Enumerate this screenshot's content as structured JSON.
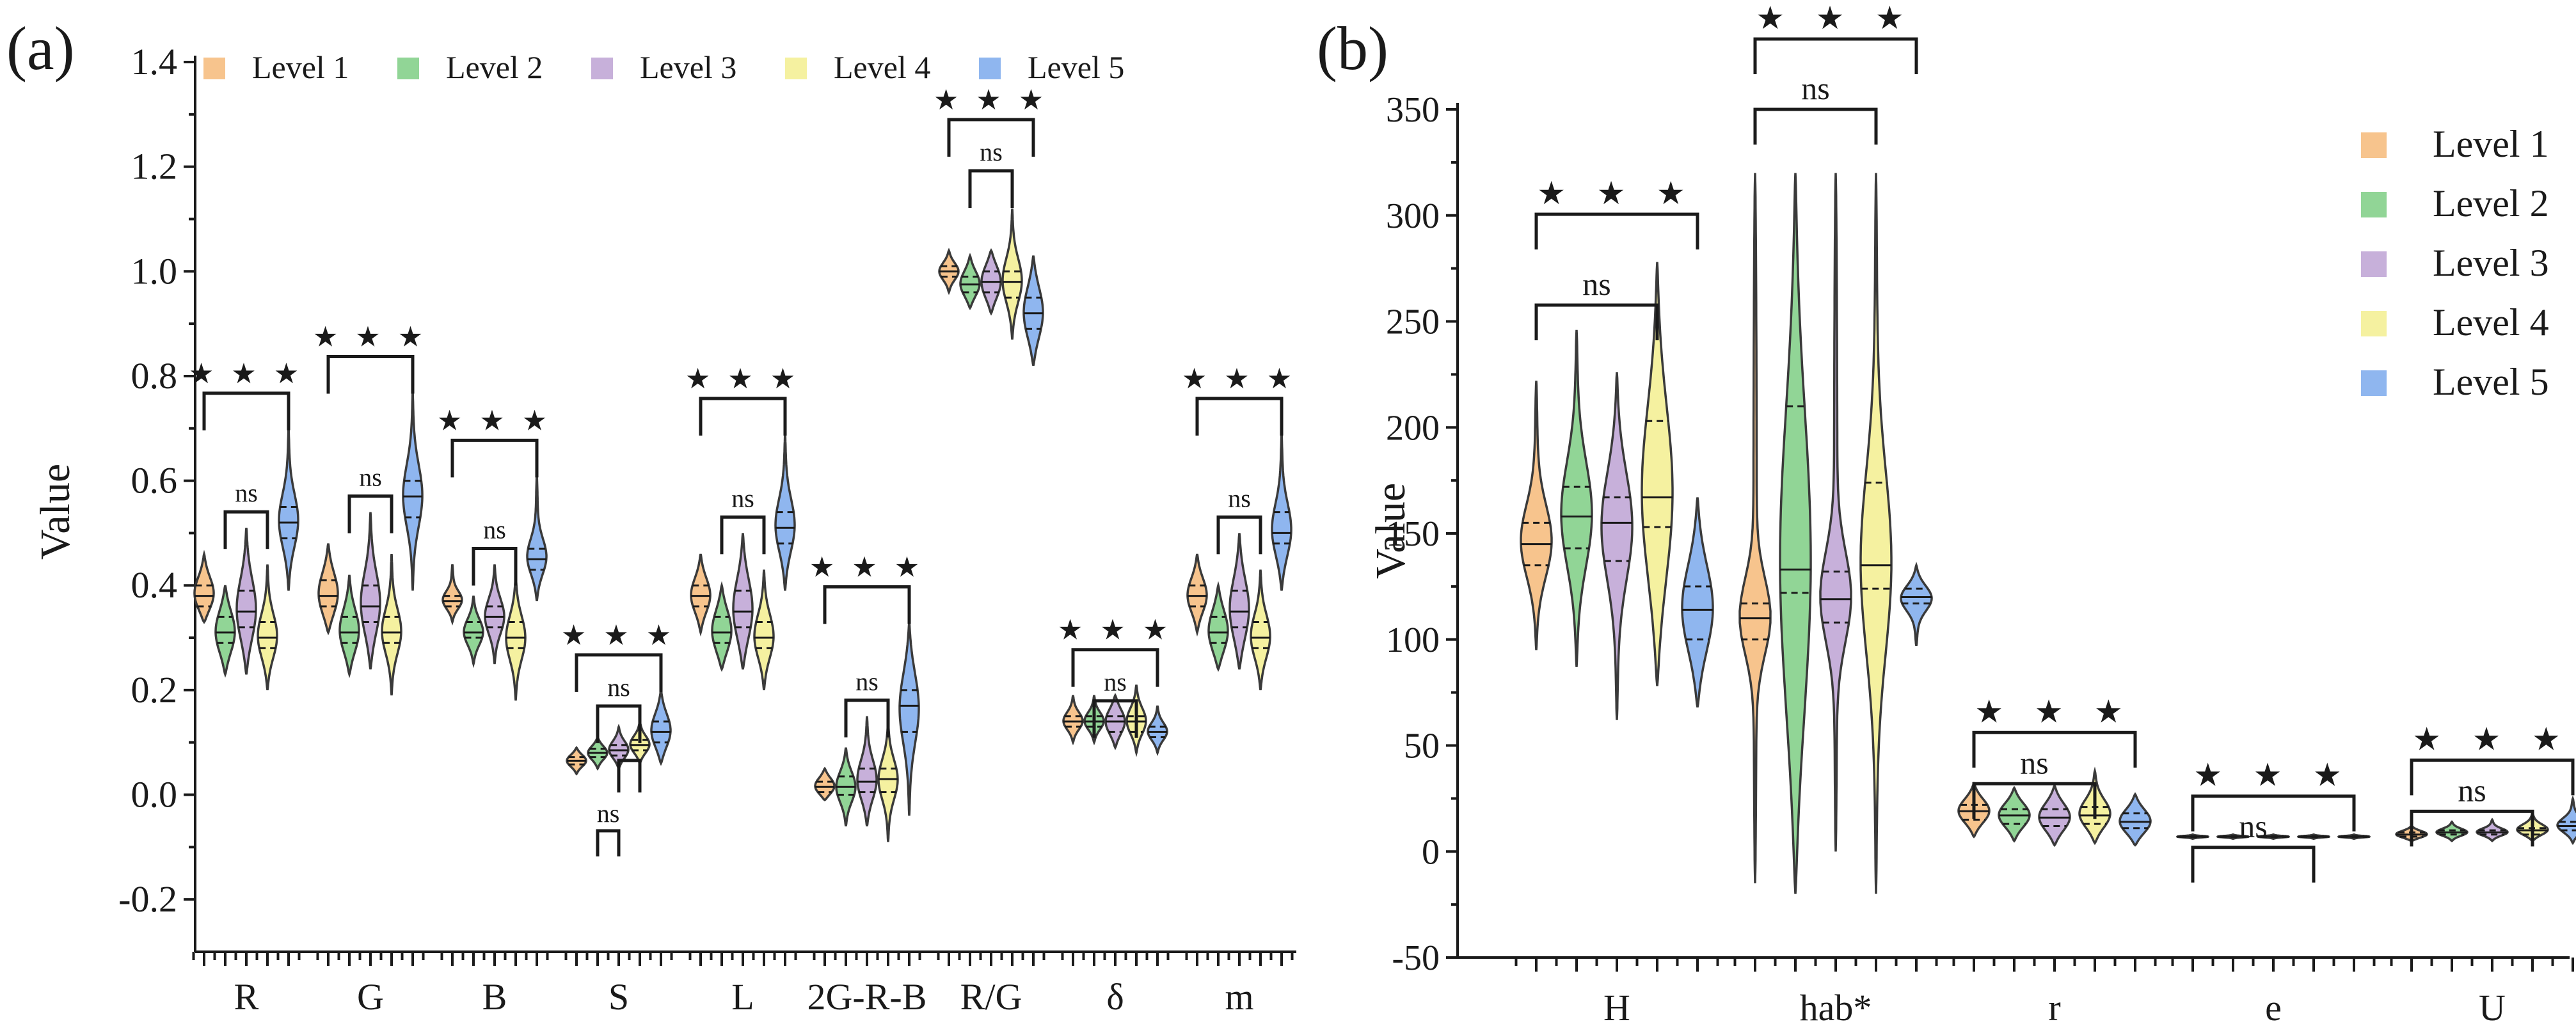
{
  "colors": {
    "Level 1": "#f7c48d",
    "Level 2": "#91d596",
    "Level 3": "#c7b0da",
    "Level 4": "#f5f1a0",
    "Level 5": "#8fb6ef"
  },
  "chart_data": [
    {
      "panel": "(a)",
      "type": "violin",
      "ylabel": "Value",
      "xlabel": "",
      "ylim": [
        -0.3,
        1.4
      ],
      "yticks": [
        "-0.2",
        "0.0",
        "0.2",
        "0.4",
        "0.6",
        "0.8",
        "1.0",
        "1.2",
        "1.4"
      ],
      "ytick_values": [
        -0.2,
        0.0,
        0.2,
        0.4,
        0.6,
        0.8,
        1.0,
        1.2,
        1.4
      ],
      "legend": {
        "position": "top",
        "entries": [
          "Level 1",
          "Level 2",
          "Level 3",
          "Level 4",
          "Level 5"
        ]
      },
      "categories": [
        "R",
        "G",
        "B",
        "S",
        "L",
        "2G-R-B",
        "R/G",
        "δ",
        "m"
      ],
      "series": [
        {
          "name": "R",
          "groups": [
            {
              "min": 0.33,
              "max": 0.46,
              "median": 0.38,
              "q1": 0.36,
              "q3": 0.4
            },
            {
              "min": 0.23,
              "max": 0.4,
              "median": 0.31,
              "q1": 0.29,
              "q3": 0.34
            },
            {
              "min": 0.23,
              "max": 0.51,
              "median": 0.35,
              "q1": 0.32,
              "q3": 0.39
            },
            {
              "min": 0.2,
              "max": 0.44,
              "median": 0.3,
              "q1": 0.28,
              "q3": 0.33
            },
            {
              "min": 0.39,
              "max": 0.7,
              "median": 0.52,
              "q1": 0.49,
              "q3": 0.55
            }
          ],
          "sig": {
            "outer": "★ ★ ★",
            "inner": "ns"
          }
        },
        {
          "name": "G",
          "groups": [
            {
              "min": 0.31,
              "max": 0.48,
              "median": 0.38,
              "q1": 0.36,
              "q3": 0.41
            },
            {
              "min": 0.23,
              "max": 0.42,
              "median": 0.31,
              "q1": 0.29,
              "q3": 0.34
            },
            {
              "min": 0.24,
              "max": 0.54,
              "median": 0.36,
              "q1": 0.33,
              "q3": 0.4
            },
            {
              "min": 0.19,
              "max": 0.46,
              "median": 0.31,
              "q1": 0.29,
              "q3": 0.34
            },
            {
              "min": 0.39,
              "max": 0.77,
              "median": 0.57,
              "q1": 0.53,
              "q3": 0.6
            }
          ],
          "sig": {
            "outer": "★ ★ ★",
            "inner": "ns"
          }
        },
        {
          "name": "B",
          "groups": [
            {
              "min": 0.33,
              "max": 0.44,
              "median": 0.37,
              "q1": 0.36,
              "q3": 0.38
            },
            {
              "min": 0.25,
              "max": 0.38,
              "median": 0.31,
              "q1": 0.3,
              "q3": 0.33
            },
            {
              "min": 0.25,
              "max": 0.44,
              "median": 0.34,
              "q1": 0.32,
              "q3": 0.36
            },
            {
              "min": 0.18,
              "max": 0.42,
              "median": 0.3,
              "q1": 0.28,
              "q3": 0.33
            },
            {
              "min": 0.37,
              "max": 0.61,
              "median": 0.45,
              "q1": 0.43,
              "q3": 0.47
            }
          ],
          "sig": {
            "outer": "★ ★ ★",
            "inner": "ns"
          }
        },
        {
          "name": "S",
          "groups": [
            {
              "min": 0.04,
              "max": 0.09,
              "median": 0.065,
              "q1": 0.058,
              "q3": 0.072
            },
            {
              "min": 0.05,
              "max": 0.11,
              "median": 0.08,
              "q1": 0.072,
              "q3": 0.088
            },
            {
              "min": 0.05,
              "max": 0.13,
              "median": 0.085,
              "q1": 0.075,
              "q3": 0.095
            },
            {
              "min": 0.06,
              "max": 0.14,
              "median": 0.095,
              "q1": 0.085,
              "q3": 0.105
            },
            {
              "min": 0.06,
              "max": 0.2,
              "median": 0.12,
              "q1": 0.1,
              "q3": 0.14
            }
          ],
          "sig": {
            "outer": "★ ★ ★",
            "inner": "ns",
            "inner2": "ns"
          }
        },
        {
          "name": "L",
          "groups": [
            {
              "min": 0.31,
              "max": 0.46,
              "median": 0.38,
              "q1": 0.36,
              "q3": 0.4
            },
            {
              "min": 0.24,
              "max": 0.4,
              "median": 0.31,
              "q1": 0.29,
              "q3": 0.34
            },
            {
              "min": 0.24,
              "max": 0.5,
              "median": 0.35,
              "q1": 0.32,
              "q3": 0.39
            },
            {
              "min": 0.2,
              "max": 0.43,
              "median": 0.3,
              "q1": 0.28,
              "q3": 0.33
            },
            {
              "min": 0.39,
              "max": 0.69,
              "median": 0.51,
              "q1": 0.48,
              "q3": 0.54
            }
          ],
          "sig": {
            "outer": "★ ★ ★",
            "inner": "ns"
          }
        },
        {
          "name": "2G-R-B",
          "groups": [
            {
              "min": -0.01,
              "max": 0.05,
              "median": 0.015,
              "q1": 0.005,
              "q3": 0.025
            },
            {
              "min": -0.06,
              "max": 0.09,
              "median": 0.015,
              "q1": 0.0,
              "q3": 0.035
            },
            {
              "min": -0.06,
              "max": 0.15,
              "median": 0.025,
              "q1": 0.005,
              "q3": 0.05
            },
            {
              "min": -0.09,
              "max": 0.14,
              "median": 0.03,
              "q1": 0.005,
              "q3": 0.05
            },
            {
              "min": -0.04,
              "max": 0.33,
              "median": 0.17,
              "q1": 0.12,
              "q3": 0.2
            }
          ],
          "sig": {
            "outer": "★ ★ ★",
            "inner": "ns"
          }
        },
        {
          "name": "R/G",
          "groups": [
            {
              "min": 0.96,
              "max": 1.04,
              "median": 1.0,
              "q1": 0.99,
              "q3": 1.01
            },
            {
              "min": 0.93,
              "max": 1.03,
              "median": 0.975,
              "q1": 0.96,
              "q3": 0.99
            },
            {
              "min": 0.92,
              "max": 1.04,
              "median": 0.98,
              "q1": 0.96,
              "q3": 1.0
            },
            {
              "min": 0.87,
              "max": 1.12,
              "median": 0.98,
              "q1": 0.95,
              "q3": 1.0
            },
            {
              "min": 0.82,
              "max": 1.03,
              "median": 0.92,
              "q1": 0.89,
              "q3": 0.95
            }
          ],
          "sig": {
            "outer": "★ ★ ★",
            "inner": "ns"
          }
        },
        {
          "name": "δ",
          "groups": [
            {
              "min": 0.1,
              "max": 0.19,
              "median": 0.14,
              "q1": 0.13,
              "q3": 0.15
            },
            {
              "min": 0.1,
              "max": 0.19,
              "median": 0.14,
              "q1": 0.13,
              "q3": 0.15
            },
            {
              "min": 0.09,
              "max": 0.19,
              "median": 0.14,
              "q1": 0.12,
              "q3": 0.15
            },
            {
              "min": 0.08,
              "max": 0.21,
              "median": 0.14,
              "q1": 0.12,
              "q3": 0.15
            },
            {
              "min": 0.08,
              "max": 0.17,
              "median": 0.12,
              "q1": 0.11,
              "q3": 0.13
            }
          ],
          "sig": {
            "outer": "★ ★ ★",
            "inner": "ns"
          }
        },
        {
          "name": "m",
          "groups": [
            {
              "min": 0.31,
              "max": 0.46,
              "median": 0.38,
              "q1": 0.36,
              "q3": 0.4
            },
            {
              "min": 0.24,
              "max": 0.4,
              "median": 0.31,
              "q1": 0.29,
              "q3": 0.34
            },
            {
              "min": 0.24,
              "max": 0.5,
              "median": 0.35,
              "q1": 0.32,
              "q3": 0.39
            },
            {
              "min": 0.2,
              "max": 0.43,
              "median": 0.3,
              "q1": 0.28,
              "q3": 0.33
            },
            {
              "min": 0.39,
              "max": 0.69,
              "median": 0.5,
              "q1": 0.48,
              "q3": 0.54
            }
          ],
          "sig": {
            "outer": "★ ★ ★",
            "inner": "ns"
          }
        }
      ]
    },
    {
      "panel": "(b)",
      "type": "violin",
      "ylabel": "Value",
      "xlabel": "",
      "ylim": [
        -50,
        350
      ],
      "yticks": [
        "-50",
        "0",
        "50",
        "100",
        "150",
        "200",
        "250",
        "300",
        "350"
      ],
      "ytick_values": [
        -50,
        0,
        50,
        100,
        150,
        200,
        250,
        300,
        350
      ],
      "legend": {
        "position": "top-right",
        "entries": [
          "Level 1",
          "Level 2",
          "Level 3",
          "Level 4",
          "Level 5"
        ]
      },
      "categories": [
        "H",
        "hab*",
        "r",
        "e",
        "U"
      ],
      "series": [
        {
          "name": "H",
          "groups": [
            {
              "min": 95,
              "max": 222,
              "median": 145,
              "q1": 135,
              "q3": 155
            },
            {
              "min": 87,
              "max": 246,
              "median": 158,
              "q1": 143,
              "q3": 172
            },
            {
              "min": 62,
              "max": 226,
              "median": 155,
              "q1": 137,
              "q3": 167
            },
            {
              "min": 78,
              "max": 278,
              "median": 167,
              "q1": 153,
              "q3": 203
            },
            {
              "min": 68,
              "max": 167,
              "median": 114,
              "q1": 100,
              "q3": 125
            }
          ],
          "sig": {
            "outer": "★ ★ ★",
            "inner": "ns"
          }
        },
        {
          "name": "hab*",
          "groups": [
            {
              "min": -15,
              "max": 320,
              "median": 110,
              "q1": 100,
              "q3": 117
            },
            {
              "min": -20,
              "max": 320,
              "median": 133,
              "q1": 122,
              "q3": 210
            },
            {
              "min": 0,
              "max": 320,
              "median": 119,
              "q1": 108,
              "q3": 132
            },
            {
              "min": -20,
              "max": 320,
              "median": 135,
              "q1": 124,
              "q3": 174
            },
            {
              "min": 97,
              "max": 135,
              "median": 120,
              "q1": 117,
              "q3": 124
            }
          ],
          "sig": {
            "outer": "★ ★ ★",
            "inner": "ns"
          }
        },
        {
          "name": "r",
          "groups": [
            {
              "min": 7,
              "max": 32,
              "median": 19,
              "q1": 15,
              "q3": 22
            },
            {
              "min": 5,
              "max": 30,
              "median": 17,
              "q1": 13,
              "q3": 20
            },
            {
              "min": 3,
              "max": 31,
              "median": 16,
              "q1": 12,
              "q3": 20
            },
            {
              "min": 4,
              "max": 38,
              "median": 17,
              "q1": 13,
              "q3": 21
            },
            {
              "min": 3,
              "max": 27,
              "median": 14,
              "q1": 11,
              "q3": 18
            }
          ],
          "sig": {
            "outer": "★ ★ ★",
            "inner": "ns"
          }
        },
        {
          "name": "e",
          "groups": [
            {
              "min": 6,
              "max": 8,
              "median": 7,
              "q1": 6.8,
              "q3": 7.2
            },
            {
              "min": 6,
              "max": 8,
              "median": 7,
              "q1": 6.8,
              "q3": 7.2
            },
            {
              "min": 6,
              "max": 8,
              "median": 7,
              "q1": 6.8,
              "q3": 7.2
            },
            {
              "min": 6,
              "max": 8,
              "median": 7,
              "q1": 6.8,
              "q3": 7.2
            },
            {
              "min": 6,
              "max": 8,
              "median": 7,
              "q1": 6.8,
              "q3": 7.2
            }
          ],
          "sig": {
            "outer": "★ ★ ★",
            "inner": "ns"
          }
        },
        {
          "name": "U",
          "groups": [
            {
              "min": 5,
              "max": 12,
              "median": 8,
              "q1": 7,
              "q3": 9
            },
            {
              "min": 5,
              "max": 14,
              "median": 9,
              "q1": 8,
              "q3": 10
            },
            {
              "min": 5,
              "max": 15,
              "median": 9,
              "q1": 8,
              "q3": 10
            },
            {
              "min": 5,
              "max": 18,
              "median": 10,
              "q1": 8,
              "q3": 11
            },
            {
              "min": 4,
              "max": 25,
              "median": 12,
              "q1": 10,
              "q3": 14
            }
          ],
          "sig": {
            "outer": "★ ★ ★",
            "inner": "ns"
          }
        }
      ]
    }
  ]
}
